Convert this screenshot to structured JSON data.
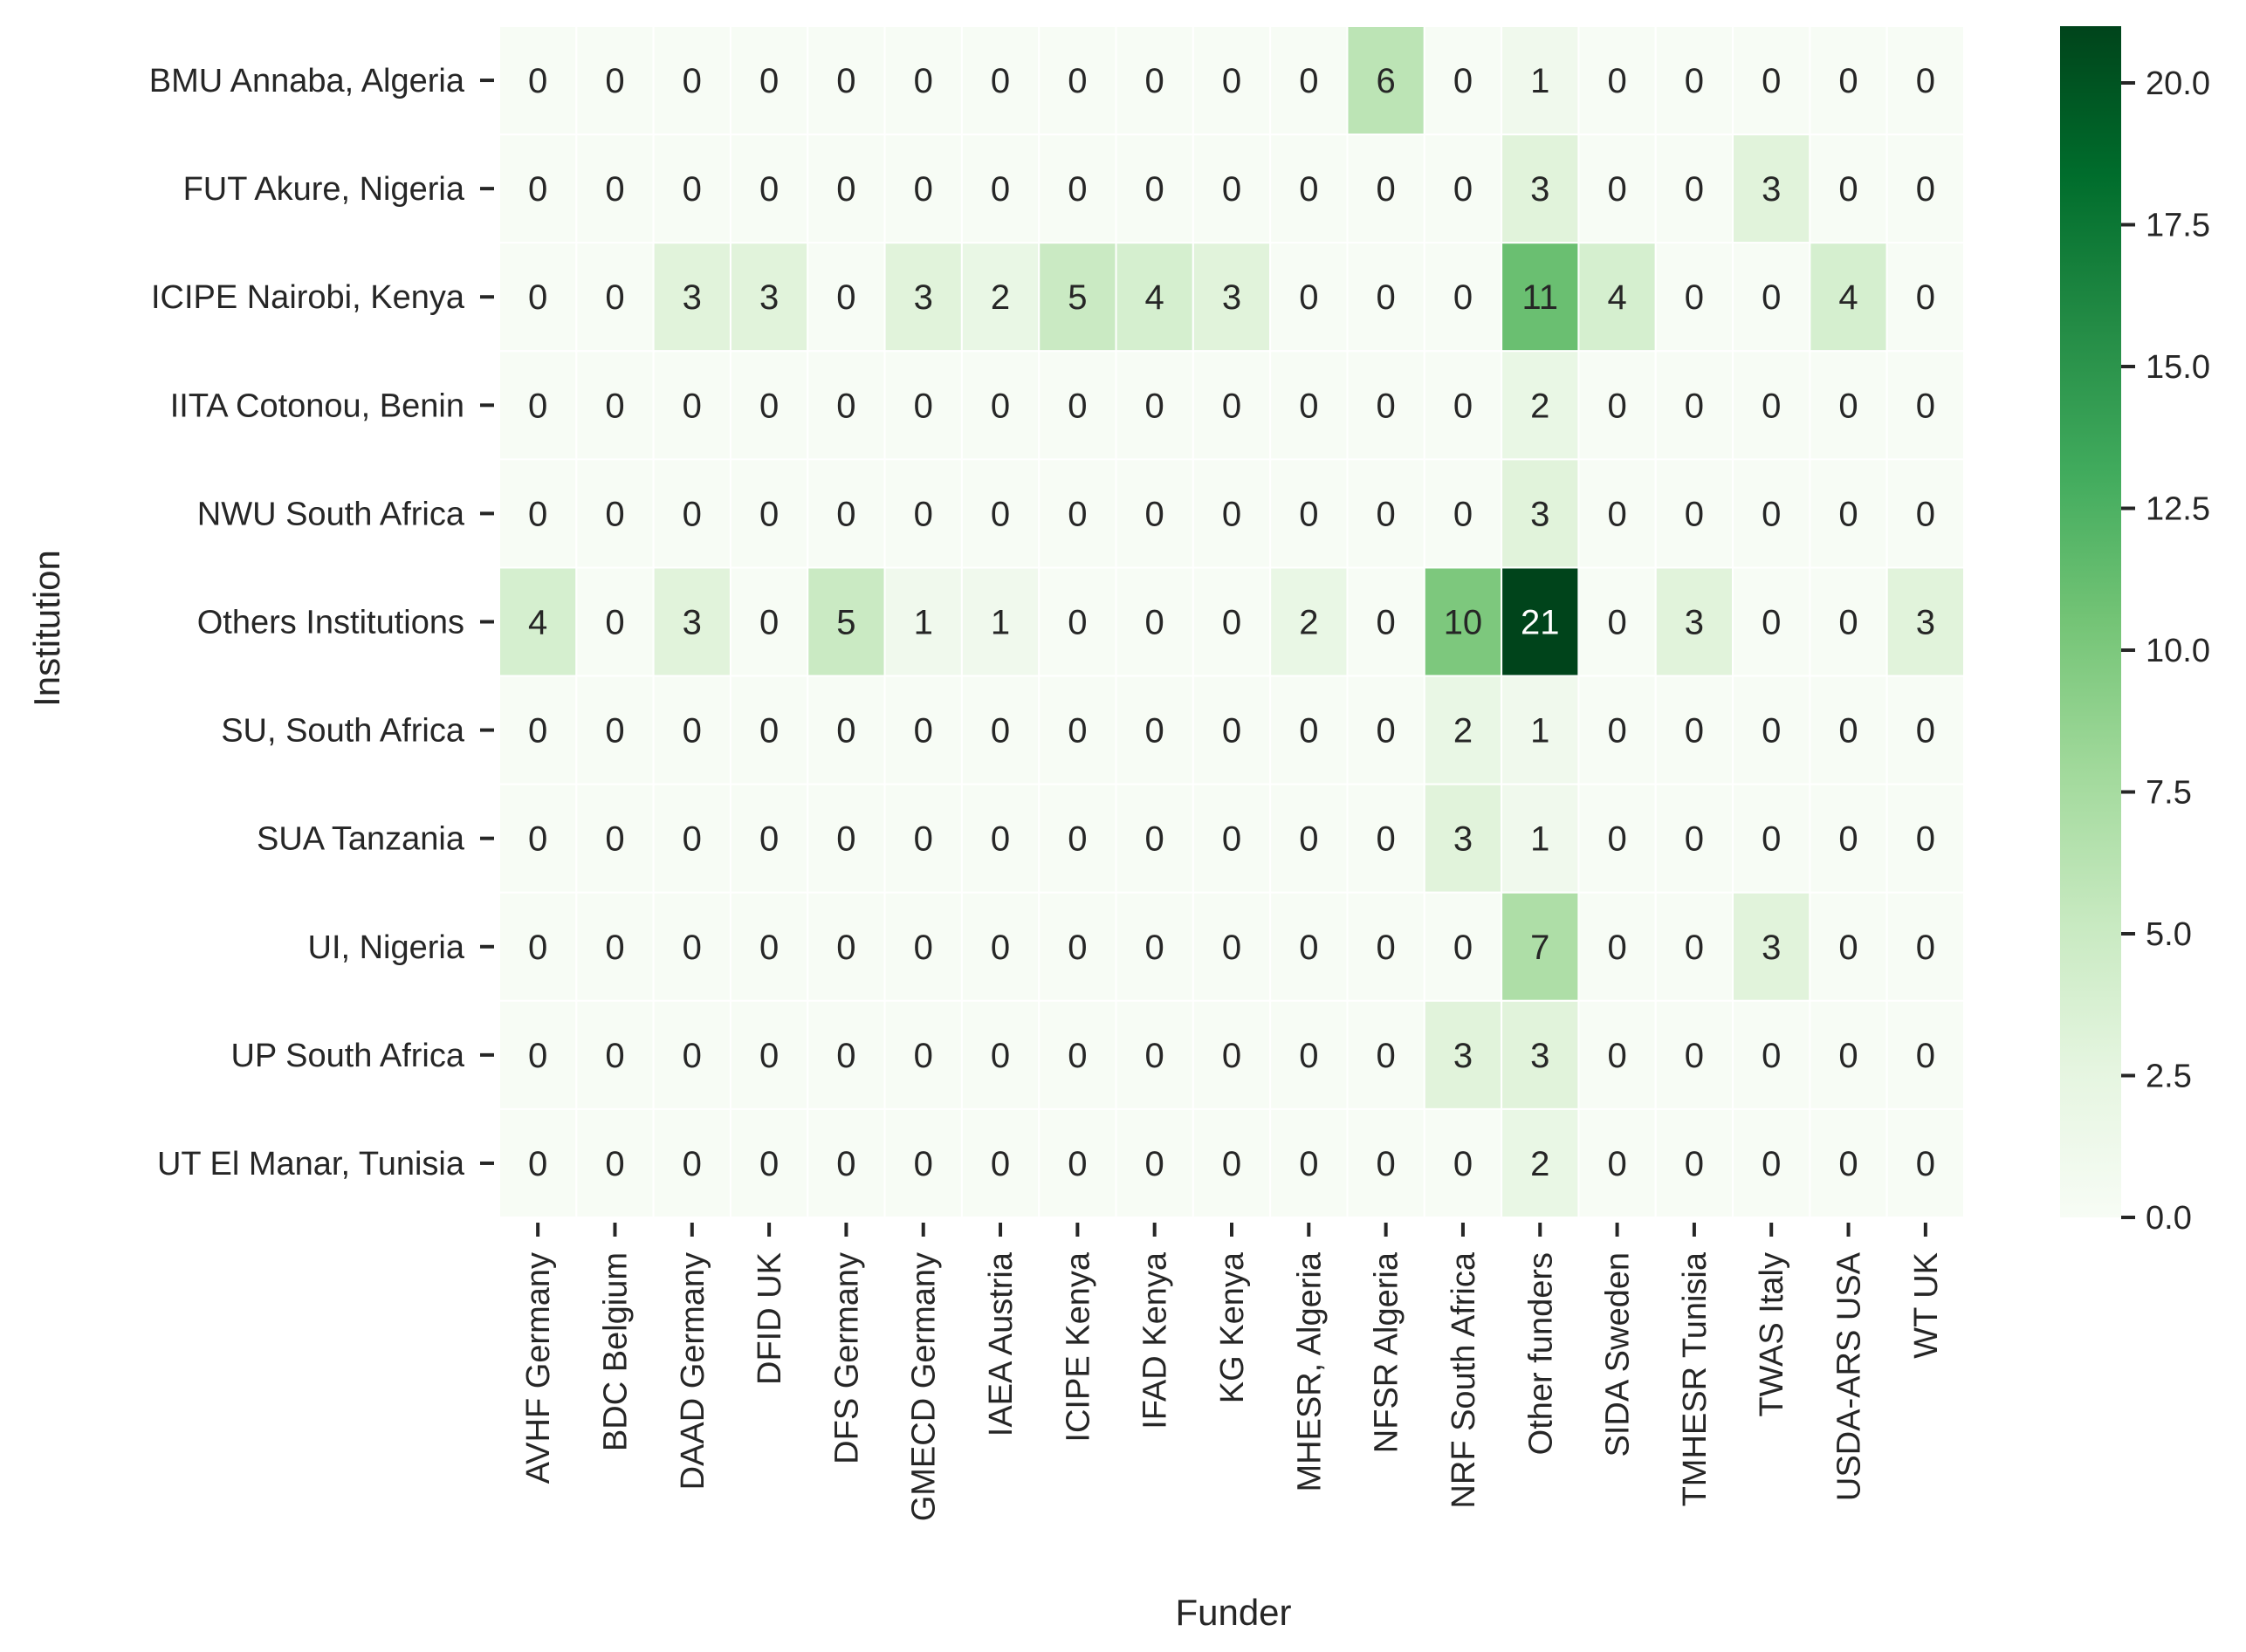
{
  "chart_data": {
    "type": "heatmap",
    "title": "",
    "xlabel": "Funder",
    "ylabel": "Institution",
    "x_categories": [
      "AVHF Germany",
      "BDC Belgium",
      "DAAD Germany",
      "DFID UK",
      "DFS Germany",
      "GMECD Germany",
      "IAEA Austria",
      "ICIPE Kenya",
      "IFAD Kenya",
      "KG Kenya",
      "MHESR, Algeria",
      "NFSR Algeria",
      "NRF South Africa",
      "Other funders",
      "SIDA Sweden",
      "TMHESR Tunisia",
      "TWAS Italy",
      "USDA-ARS USA",
      "WT UK"
    ],
    "y_categories": [
      "BMU Annaba, Algeria",
      "FUT Akure, Nigeria",
      "ICIPE Nairobi, Kenya",
      "IITA Cotonou, Benin",
      "NWU South Africa",
      "Others Institutions",
      "SU, South Africa",
      "SUA Tanzania",
      "UI, Nigeria",
      "UP South Africa",
      "UT El Manar, Tunisia"
    ],
    "values": [
      [
        0,
        0,
        0,
        0,
        0,
        0,
        0,
        0,
        0,
        0,
        0,
        6,
        0,
        1,
        0,
        0,
        0,
        0,
        0
      ],
      [
        0,
        0,
        0,
        0,
        0,
        0,
        0,
        0,
        0,
        0,
        0,
        0,
        0,
        3,
        0,
        0,
        3,
        0,
        0
      ],
      [
        0,
        0,
        3,
        3,
        0,
        3,
        2,
        5,
        4,
        3,
        0,
        0,
        0,
        11,
        4,
        0,
        0,
        4,
        0
      ],
      [
        0,
        0,
        0,
        0,
        0,
        0,
        0,
        0,
        0,
        0,
        0,
        0,
        0,
        2,
        0,
        0,
        0,
        0,
        0
      ],
      [
        0,
        0,
        0,
        0,
        0,
        0,
        0,
        0,
        0,
        0,
        0,
        0,
        0,
        3,
        0,
        0,
        0,
        0,
        0
      ],
      [
        4,
        0,
        3,
        0,
        5,
        1,
        1,
        0,
        0,
        0,
        2,
        0,
        10,
        21,
        0,
        3,
        0,
        0,
        3
      ],
      [
        0,
        0,
        0,
        0,
        0,
        0,
        0,
        0,
        0,
        0,
        0,
        0,
        2,
        1,
        0,
        0,
        0,
        0,
        0
      ],
      [
        0,
        0,
        0,
        0,
        0,
        0,
        0,
        0,
        0,
        0,
        0,
        0,
        3,
        1,
        0,
        0,
        0,
        0,
        0
      ],
      [
        0,
        0,
        0,
        0,
        0,
        0,
        0,
        0,
        0,
        0,
        0,
        0,
        0,
        7,
        0,
        0,
        3,
        0,
        0
      ],
      [
        0,
        0,
        0,
        0,
        0,
        0,
        0,
        0,
        0,
        0,
        0,
        0,
        3,
        3,
        0,
        0,
        0,
        0,
        0
      ],
      [
        0,
        0,
        0,
        0,
        0,
        0,
        0,
        0,
        0,
        0,
        0,
        0,
        0,
        2,
        0,
        0,
        0,
        0,
        0
      ]
    ],
    "colorbar": {
      "min": 0,
      "max": 21,
      "ticks": [
        "0.0",
        "2.5",
        "5.0",
        "7.5",
        "10.0",
        "12.5",
        "15.0",
        "17.5",
        "20.0"
      ],
      "colormap": "Greens",
      "low_color": "#f7fcf5",
      "high_color": "#00441b"
    },
    "grid": false,
    "annotated": true
  }
}
